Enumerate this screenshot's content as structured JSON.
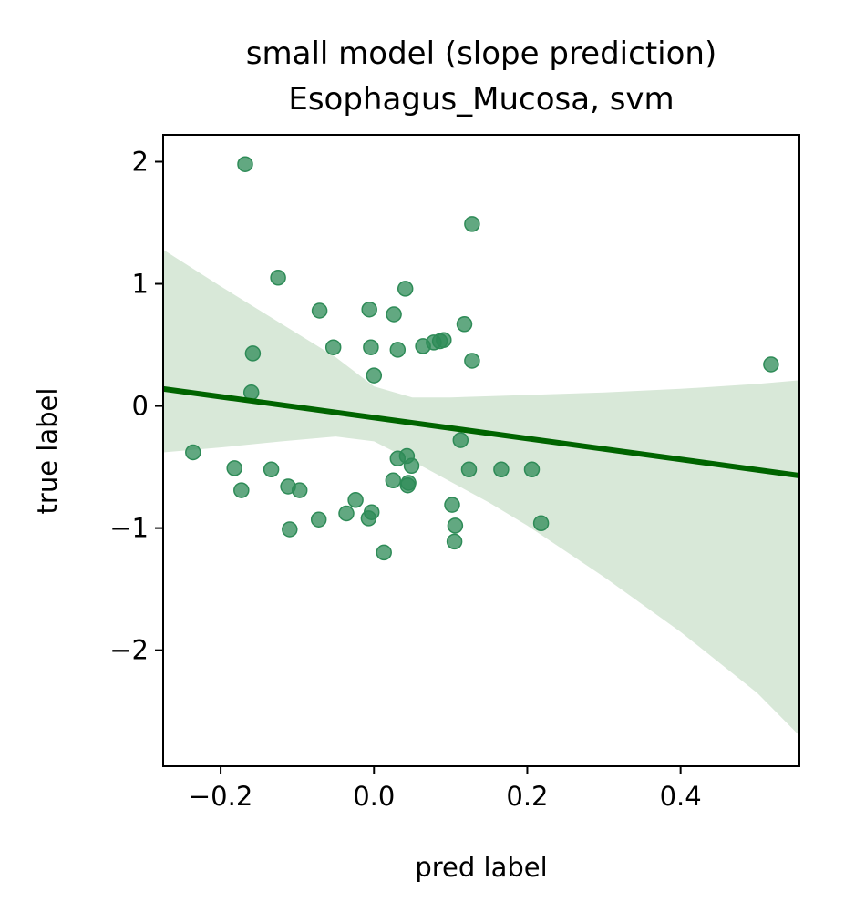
{
  "chart_data": {
    "type": "scatter",
    "title": "small model (slope prediction)",
    "subtitle": "Esophagus_Mucosa, svm",
    "xlabel": "pred label",
    "ylabel": "true label",
    "xlim": [
      -0.275,
      0.555
    ],
    "ylim": [
      -2.95,
      2.22
    ],
    "xticks": [
      -0.2,
      0.0,
      0.2,
      0.4
    ],
    "xtick_labels": [
      "−0.2",
      "0.0",
      "0.2",
      "0.4"
    ],
    "yticks": [
      2,
      1,
      0,
      -1,
      -2
    ],
    "ytick_labels": [
      "2",
      "1",
      "0",
      "−1",
      "−2"
    ],
    "grid": false,
    "point_color": "#2e8b57",
    "line_color": "#006400",
    "band_color": "#d8e8d8",
    "points": [
      {
        "x": -0.168,
        "y": 1.98
      },
      {
        "x": 0.128,
        "y": 1.49
      },
      {
        "x": -0.125,
        "y": 1.05
      },
      {
        "x": 0.041,
        "y": 0.96
      },
      {
        "x": -0.071,
        "y": 0.78
      },
      {
        "x": -0.006,
        "y": 0.79
      },
      {
        "x": 0.026,
        "y": 0.75
      },
      {
        "x": 0.118,
        "y": 0.67
      },
      {
        "x": 0.091,
        "y": 0.54
      },
      {
        "x": 0.086,
        "y": 0.53
      },
      {
        "x": 0.078,
        "y": 0.52
      },
      {
        "x": 0.064,
        "y": 0.49
      },
      {
        "x": -0.053,
        "y": 0.48
      },
      {
        "x": -0.004,
        "y": 0.48
      },
      {
        "x": 0.031,
        "y": 0.46
      },
      {
        "x": -0.158,
        "y": 0.43
      },
      {
        "x": 0.128,
        "y": 0.37
      },
      {
        "x": 0.518,
        "y": 0.34
      },
      {
        "x": 0.0,
        "y": 0.25
      },
      {
        "x": -0.16,
        "y": 0.11
      },
      {
        "x": 0.113,
        "y": -0.28
      },
      {
        "x": -0.236,
        "y": -0.38
      },
      {
        "x": 0.043,
        "y": -0.41
      },
      {
        "x": 0.031,
        "y": -0.43
      },
      {
        "x": 0.049,
        "y": -0.49
      },
      {
        "x": -0.182,
        "y": -0.51
      },
      {
        "x": -0.134,
        "y": -0.52
      },
      {
        "x": 0.124,
        "y": -0.52
      },
      {
        "x": 0.166,
        "y": -0.52
      },
      {
        "x": 0.206,
        "y": -0.52
      },
      {
        "x": 0.025,
        "y": -0.61
      },
      {
        "x": 0.045,
        "y": -0.63
      },
      {
        "x": 0.044,
        "y": -0.65
      },
      {
        "x": -0.112,
        "y": -0.66
      },
      {
        "x": -0.097,
        "y": -0.69
      },
      {
        "x": -0.173,
        "y": -0.69
      },
      {
        "x": -0.024,
        "y": -0.77
      },
      {
        "x": 0.102,
        "y": -0.81
      },
      {
        "x": -0.003,
        "y": -0.87
      },
      {
        "x": -0.036,
        "y": -0.88
      },
      {
        "x": -0.007,
        "y": -0.92
      },
      {
        "x": -0.072,
        "y": -0.93
      },
      {
        "x": 0.218,
        "y": -0.96
      },
      {
        "x": 0.106,
        "y": -0.98
      },
      {
        "x": -0.11,
        "y": -1.01
      },
      {
        "x": 0.105,
        "y": -1.11
      },
      {
        "x": 0.013,
        "y": -1.2
      }
    ],
    "regression": {
      "x": [
        -0.275,
        0.555
      ],
      "y": [
        0.14,
        -0.57
      ]
    },
    "confidence_band": {
      "x": [
        -0.275,
        -0.2,
        -0.12,
        -0.05,
        0.0,
        0.05,
        0.1,
        0.15,
        0.2,
        0.3,
        0.4,
        0.5,
        0.555
      ],
      "upper": [
        1.28,
        0.98,
        0.67,
        0.4,
        0.16,
        0.07,
        0.07,
        0.08,
        0.09,
        0.11,
        0.14,
        0.18,
        0.21
      ],
      "lower": [
        -0.38,
        -0.34,
        -0.29,
        -0.25,
        -0.29,
        -0.45,
        -0.62,
        -0.79,
        -0.98,
        -1.4,
        -1.85,
        -2.35,
        -2.7
      ]
    }
  }
}
